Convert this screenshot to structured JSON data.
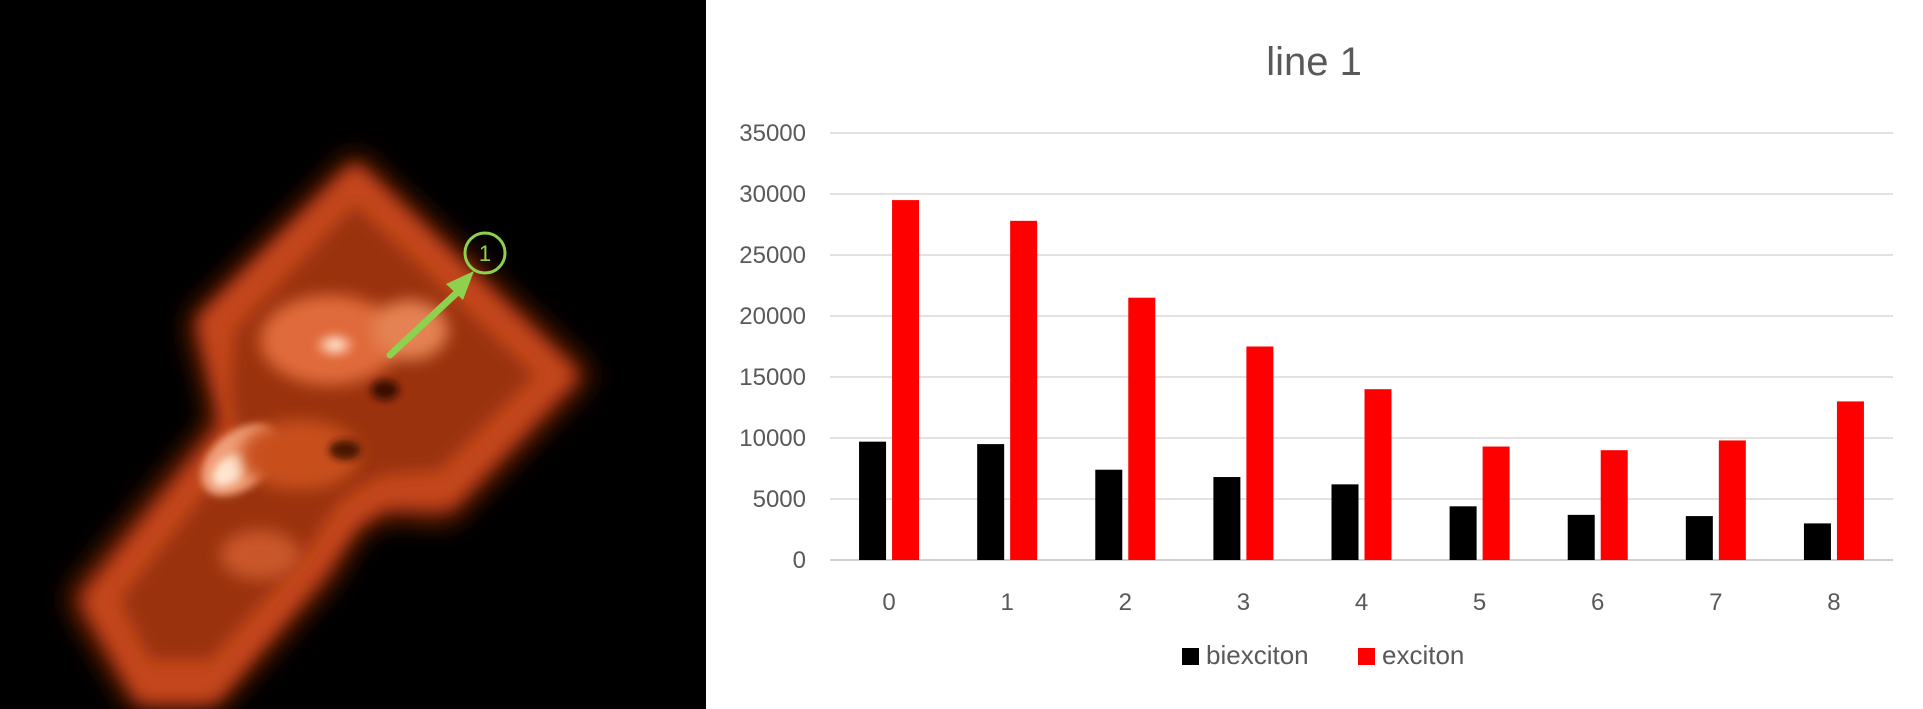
{
  "image": {
    "description_free": true,
    "marker": {
      "label": "1",
      "color": "#8ed14f"
    }
  },
  "chart_data": {
    "type": "bar",
    "title": "line 1",
    "xlabel": "",
    "ylabel": "",
    "categories": [
      "0",
      "1",
      "2",
      "3",
      "4",
      "5",
      "6",
      "7",
      "8"
    ],
    "series": [
      {
        "name": "biexciton",
        "color": "#000000",
        "values": [
          9700,
          9500,
          7400,
          6800,
          6200,
          4400,
          3700,
          3600,
          3000
        ]
      },
      {
        "name": "exciton",
        "color": "#ff0000",
        "values": [
          29500,
          27800,
          21500,
          17500,
          14000,
          9300,
          9000,
          9800,
          13000
        ]
      }
    ],
    "ylim": [
      0,
      35000
    ],
    "yticks": [
      "0",
      "5000",
      "10000",
      "15000",
      "20000",
      "25000",
      "30000",
      "35000"
    ],
    "grid": true,
    "legend_position": "bottom"
  }
}
